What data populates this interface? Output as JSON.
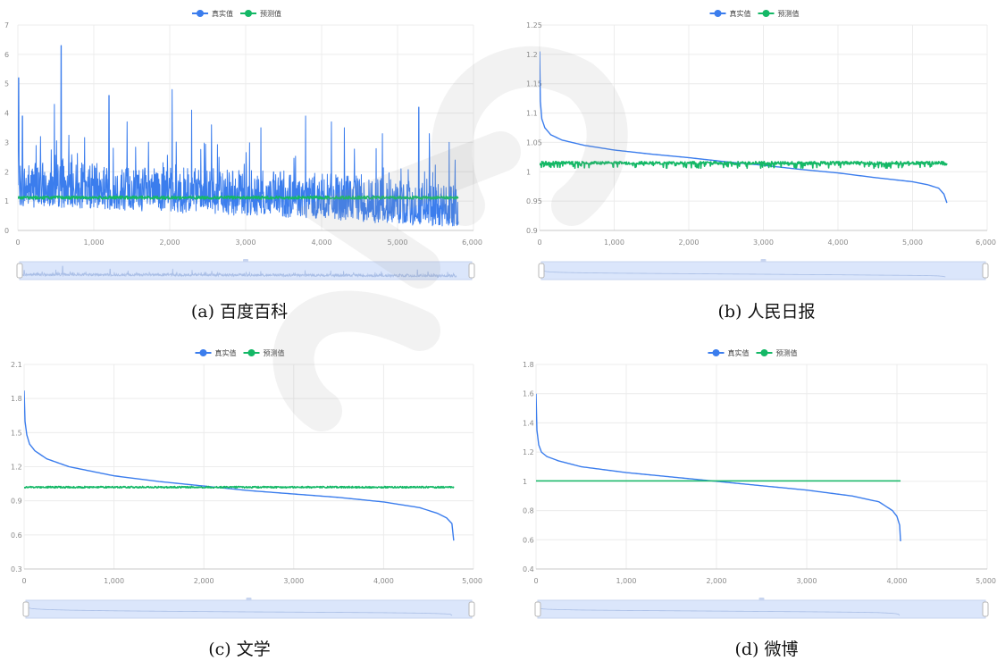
{
  "colors": {
    "actual": "#3b7ded",
    "predicted": "#14b866",
    "grid": "#ececec",
    "axis": "#c8c8c8",
    "tick_text": "#8a8a8a",
    "slider_fill": "#dbe6fb",
    "slider_border": "#c7d4ef"
  },
  "legend": {
    "actual": "真实值",
    "predicted": "预测值"
  },
  "chart_data": [
    {
      "id": "a",
      "type": "line",
      "caption": "(a) 百度百科",
      "title": "",
      "xlabel": "",
      "ylabel": "",
      "xlim": [
        0,
        6000
      ],
      "ylim": [
        0,
        7
      ],
      "x_ticks": [
        0,
        1000,
        2000,
        3000,
        4000,
        5000,
        6000
      ],
      "x_tick_labels": [
        "0",
        "1,000",
        "2,000",
        "3,000",
        "4,000",
        "5,000",
        "6,000"
      ],
      "y_ticks": [
        0,
        1,
        2,
        3,
        4,
        5,
        6,
        7
      ],
      "y_tick_labels": [
        "0",
        "1",
        "2",
        "3",
        "4",
        "5",
        "6",
        "7"
      ],
      "grid": true,
      "legend_position": "top-center",
      "dataZoom_slider": true,
      "series": [
        {
          "name": "真实值",
          "style": "noisy",
          "n": 5800,
          "trend_x": [
            0,
            1000,
            2000,
            3000,
            4000,
            5000,
            5800
          ],
          "trend_y": [
            1.35,
            1.3,
            1.15,
            1.05,
            0.95,
            0.75,
            0.55
          ],
          "noise_high": 1.0,
          "noise_low": 0.55,
          "spikes": [
            [
              10,
              5.2
            ],
            [
              60,
              3.9
            ],
            [
              300,
              3.2
            ],
            [
              480,
              4.3
            ],
            [
              570,
              6.3
            ],
            [
              1200,
              4.6
            ],
            [
              1440,
              3.7
            ],
            [
              2030,
              4.8
            ],
            [
              2290,
              4.1
            ],
            [
              2550,
              3.6
            ],
            [
              3200,
              3.5
            ],
            [
              3790,
              3.9
            ],
            [
              4130,
              3.7
            ],
            [
              4300,
              3.5
            ],
            [
              4800,
              3.3
            ],
            [
              5280,
              4.2
            ],
            [
              5420,
              3.3
            ],
            [
              5680,
              3.0
            ],
            [
              5760,
              2.4
            ]
          ]
        },
        {
          "name": "预测值",
          "style": "flat_noisy",
          "n": 5800,
          "level": 1.12,
          "noise": 0.05
        }
      ]
    },
    {
      "id": "b",
      "type": "line",
      "caption": "(b) 人民日报",
      "title": "",
      "xlabel": "",
      "ylabel": "",
      "xlim": [
        0,
        6000
      ],
      "ylim": [
        0.9,
        1.25
      ],
      "x_ticks": [
        0,
        1000,
        2000,
        3000,
        4000,
        5000,
        6000
      ],
      "x_tick_labels": [
        "0",
        "1,000",
        "2,000",
        "3,000",
        "4,000",
        "5,000",
        "6,000"
      ],
      "y_ticks": [
        0.9,
        0.95,
        1,
        1.05,
        1.1,
        1.15,
        1.2,
        1.25
      ],
      "y_tick_labels": [
        "0.9",
        "0.95",
        "1",
        "1.05",
        "1.1",
        "1.15",
        "1.2",
        "1.25"
      ],
      "grid": true,
      "legend_position": "top-center",
      "dataZoom_slider": true,
      "series": [
        {
          "name": "真实值",
          "style": "smooth",
          "x": [
            0,
            10,
            30,
            70,
            150,
            300,
            600,
            1000,
            1500,
            2000,
            2500,
            3000,
            3500,
            4000,
            4500,
            5000,
            5200,
            5350,
            5420,
            5460
          ],
          "y": [
            1.205,
            1.12,
            1.09,
            1.075,
            1.063,
            1.054,
            1.045,
            1.037,
            1.03,
            1.024,
            1.017,
            1.011,
            1.004,
            0.998,
            0.99,
            0.983,
            0.978,
            0.972,
            0.962,
            0.947
          ]
        },
        {
          "name": "预测值",
          "style": "flat_noisy",
          "n": 5460,
          "level": 1.015,
          "noise": 0.0025,
          "dips": 0.009
        }
      ]
    },
    {
      "id": "c",
      "type": "line",
      "caption": "(c) 文学",
      "title": "",
      "xlabel": "",
      "ylabel": "",
      "xlim": [
        0,
        5000
      ],
      "ylim": [
        0.3,
        2.1
      ],
      "x_ticks": [
        0,
        1000,
        2000,
        3000,
        4000,
        5000
      ],
      "x_tick_labels": [
        "0",
        "1,000",
        "2,000",
        "3,000",
        "4,000",
        "5,000"
      ],
      "y_ticks": [
        0.3,
        0.6,
        0.9,
        1.2,
        1.5,
        1.8,
        2.1
      ],
      "y_tick_labels": [
        "0.3",
        "0.6",
        "0.9",
        "1.2",
        "1.5",
        "1.8",
        "2.1"
      ],
      "grid": true,
      "legend_position": "top-center",
      "dataZoom_slider": true,
      "series": [
        {
          "name": "真实值",
          "style": "smooth",
          "x": [
            0,
            10,
            30,
            60,
            120,
            250,
            500,
            1000,
            1500,
            2000,
            2500,
            3000,
            3500,
            4000,
            4400,
            4600,
            4700,
            4760,
            4780
          ],
          "y": [
            1.87,
            1.6,
            1.48,
            1.4,
            1.34,
            1.27,
            1.2,
            1.12,
            1.07,
            1.03,
            0.99,
            0.96,
            0.93,
            0.89,
            0.84,
            0.79,
            0.75,
            0.7,
            0.55
          ]
        },
        {
          "name": "预测值",
          "style": "flat_noisy",
          "n": 4780,
          "level": 1.02,
          "noise": 0.007
        }
      ]
    },
    {
      "id": "d",
      "type": "line",
      "caption": "(d) 微博",
      "title": "",
      "xlabel": "",
      "ylabel": "",
      "xlim": [
        0,
        5000
      ],
      "ylim": [
        0.4,
        1.8
      ],
      "x_ticks": [
        0,
        1000,
        2000,
        3000,
        4000,
        5000
      ],
      "x_tick_labels": [
        "0",
        "1,000",
        "2,000",
        "3,000",
        "4,000",
        "5,000"
      ],
      "y_ticks": [
        0.4,
        0.6,
        0.8,
        1,
        1.2,
        1.4,
        1.6,
        1.8
      ],
      "y_tick_labels": [
        "0.4",
        "0.6",
        "0.8",
        "1",
        "1.2",
        "1.4",
        "1.6",
        "1.8"
      ],
      "grid": true,
      "legend_position": "top-center",
      "dataZoom_slider": true,
      "series": [
        {
          "name": "真实值",
          "style": "smooth",
          "x": [
            0,
            10,
            30,
            60,
            120,
            250,
            500,
            1000,
            1500,
            2000,
            2500,
            3000,
            3500,
            3800,
            3950,
            4000,
            4030,
            4040
          ],
          "y": [
            1.6,
            1.35,
            1.25,
            1.2,
            1.17,
            1.14,
            1.1,
            1.06,
            1.03,
            1.0,
            0.97,
            0.94,
            0.9,
            0.86,
            0.8,
            0.76,
            0.7,
            0.59
          ]
        },
        {
          "name": "预测值",
          "style": "flat",
          "x": [
            0,
            4040
          ],
          "y": [
            1.003,
            1.003
          ]
        }
      ]
    }
  ]
}
